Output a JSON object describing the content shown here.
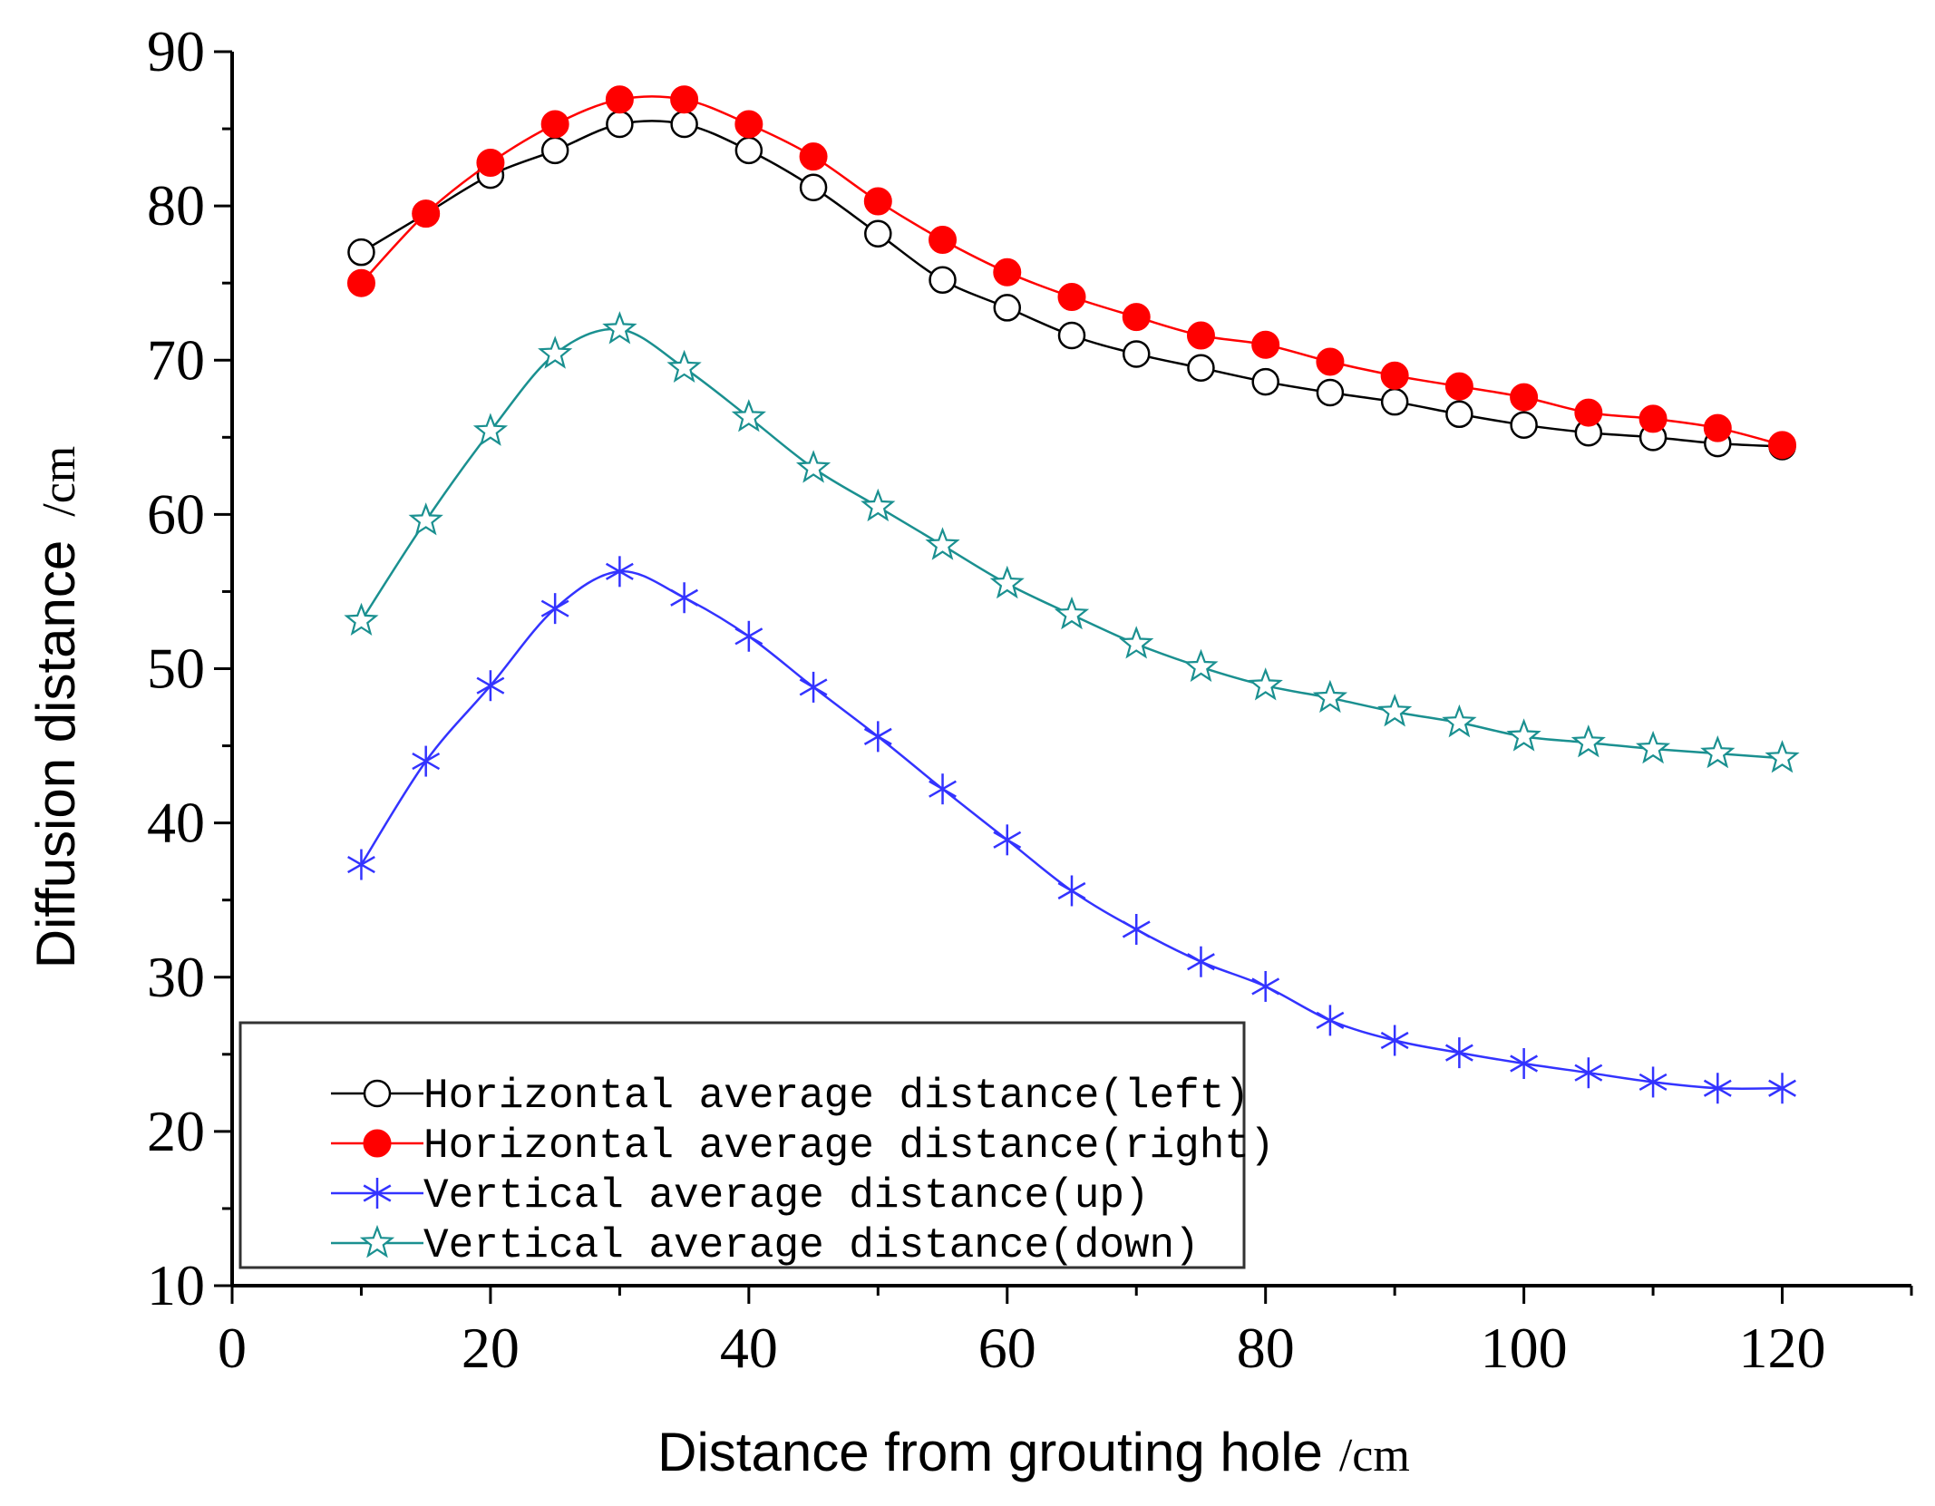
{
  "chart_data": {
    "type": "line",
    "title": "",
    "xlabel": "Distance from grouting hole",
    "xlabel_unit": "/cm",
    "ylabel": "Diffusion distance",
    "ylabel_unit": "/cm",
    "xlim": [
      0,
      130
    ],
    "ylim": [
      10,
      90
    ],
    "xticks": [
      0,
      20,
      40,
      60,
      80,
      100,
      120
    ],
    "yticks": [
      10,
      20,
      30,
      40,
      50,
      60,
      70,
      80,
      90
    ],
    "x": [
      10,
      15,
      20,
      25,
      30,
      35,
      40,
      45,
      50,
      55,
      60,
      65,
      70,
      75,
      80,
      85,
      90,
      95,
      100,
      105,
      110,
      115,
      120
    ],
    "series": [
      {
        "name": "Horizontal average distance(left)",
        "color": "#000000",
        "marker": "open-circle",
        "values": [
          77.0,
          79.5,
          82.0,
          83.6,
          85.3,
          85.3,
          83.6,
          81.2,
          78.2,
          75.2,
          73.4,
          71.6,
          70.4,
          69.5,
          68.6,
          67.9,
          67.3,
          66.5,
          65.8,
          65.3,
          65.0,
          64.6,
          64.4
        ]
      },
      {
        "name": "Horizontal average distance(right)",
        "color": "#ff0000",
        "marker": "filled-circle",
        "values": [
          75.0,
          79.5,
          82.8,
          85.3,
          86.9,
          86.9,
          85.3,
          83.2,
          80.3,
          77.8,
          75.7,
          74.1,
          72.8,
          71.6,
          71.0,
          69.9,
          69.0,
          68.3,
          67.6,
          66.6,
          66.2,
          65.6,
          64.5
        ]
      },
      {
        "name": "Vertical average distance(up)",
        "color": "#3333ff",
        "marker": "asterisk",
        "values": [
          37.3,
          44.0,
          48.9,
          53.9,
          56.3,
          54.6,
          52.1,
          48.8,
          45.6,
          42.2,
          38.9,
          35.6,
          33.1,
          31.0,
          29.4,
          27.2,
          25.9,
          25.1,
          24.4,
          23.8,
          23.2,
          22.8,
          22.8
        ]
      },
      {
        "name": "Vertical average distance(down)",
        "color": "#1a9090",
        "marker": "open-star",
        "values": [
          53.1,
          59.6,
          65.4,
          70.4,
          72.0,
          69.5,
          66.3,
          63.0,
          60.5,
          58.0,
          55.5,
          53.5,
          51.6,
          50.1,
          48.9,
          48.1,
          47.2,
          46.5,
          45.6,
          45.2,
          44.8,
          44.5,
          44.2
        ]
      }
    ],
    "legend": {
      "placement": "lower-left",
      "entries": [
        "Horizontal average distance(left)",
        "Horizontal average distance(right)",
        "Vertical average distance(up)",
        "Vertical average distance(down)"
      ]
    },
    "grid": false
  }
}
